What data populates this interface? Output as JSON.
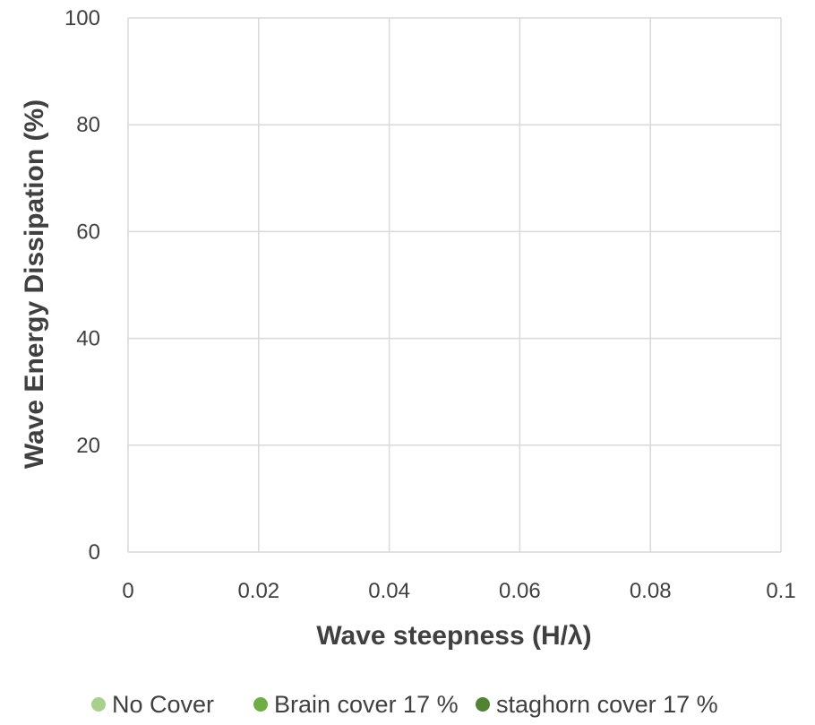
{
  "chart_data": {
    "type": "scatter",
    "title": "",
    "xlabel": "Wave steepness (H/λ)",
    "ylabel": "Wave Energy Dissipation (%)",
    "xlim": [
      0,
      0.1
    ],
    "ylim": [
      0,
      100
    ],
    "x_ticks": [
      "0",
      "0.02",
      "0.04",
      "0.06",
      "0.08",
      "0.1"
    ],
    "y_ticks": [
      "0",
      "20",
      "40",
      "60",
      "80",
      "100"
    ],
    "grid": true,
    "legend_position": "bottom",
    "series": [
      {
        "name": "No Cover",
        "color": "#a9d18e",
        "points": []
      },
      {
        "name": "Brain cover 17 %",
        "color": "#70ad47",
        "points": []
      },
      {
        "name": "staghorn cover 17 %",
        "color": "#548235",
        "points": []
      }
    ]
  }
}
